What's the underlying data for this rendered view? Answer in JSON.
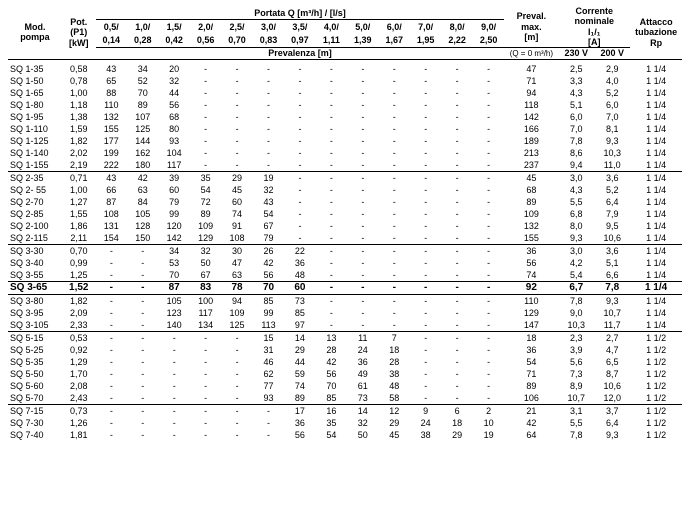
{
  "headers": {
    "model": "Mod.\npompa",
    "power": "Pot.\n(P1)\n[kW]",
    "flow_top": "Portata Q [m³/h] / [l/s]",
    "head": "Prevalenza [m]",
    "hmax": "Preval.\nmax.\n[m]",
    "hmax_note": "(Q = 0 m³/h)",
    "current": "Corrente\nnominale\nI₁/₁\n[A]",
    "conn": "Attacco\ntubazione\nRp",
    "volts": [
      "230 V",
      "200 V"
    ],
    "cols": [
      [
        "0,5/",
        "0,14"
      ],
      [
        "1,0/",
        "0,28"
      ],
      [
        "1,5/",
        "0,42"
      ],
      [
        "2,0/",
        "0,56"
      ],
      [
        "2,5/",
        "0,70"
      ],
      [
        "3,0/",
        "0,83"
      ],
      [
        "3,5/",
        "0,97"
      ],
      [
        "4,0/",
        "1,11"
      ],
      [
        "5,0/",
        "1,39"
      ],
      [
        "6,0/",
        "1,67"
      ],
      [
        "7,0/",
        "1,95"
      ],
      [
        "8,0/",
        "2,22"
      ],
      [
        "9,0/",
        "2,50"
      ]
    ]
  },
  "rows": [
    {
      "m": "SQ 1-35",
      "p": "0,58",
      "q": [
        "43",
        "34",
        "20",
        "-",
        "-",
        "-",
        "-",
        "-",
        "-",
        "-",
        "-",
        "-",
        "-"
      ],
      "h": "47",
      "a": [
        "2,5",
        "2,9"
      ],
      "c": "1 1/4"
    },
    {
      "m": "SQ 1-50",
      "p": "0,78",
      "q": [
        "65",
        "52",
        "32",
        "-",
        "-",
        "-",
        "-",
        "-",
        "-",
        "-",
        "-",
        "-",
        "-"
      ],
      "h": "71",
      "a": [
        "3,3",
        "4,0"
      ],
      "c": "1 1/4"
    },
    {
      "m": "SQ 1-65",
      "p": "1,00",
      "q": [
        "88",
        "70",
        "44",
        "-",
        "-",
        "-",
        "-",
        "-",
        "-",
        "-",
        "-",
        "-",
        "-"
      ],
      "h": "94",
      "a": [
        "4,3",
        "5,2"
      ],
      "c": "1 1/4"
    },
    {
      "m": "SQ 1-80",
      "p": "1,18",
      "q": [
        "110",
        "89",
        "56",
        "-",
        "-",
        "-",
        "-",
        "-",
        "-",
        "-",
        "-",
        "-",
        "-"
      ],
      "h": "118",
      "a": [
        "5,1",
        "6,0"
      ],
      "c": "1 1/4"
    },
    {
      "m": "SQ 1-95",
      "p": "1,38",
      "q": [
        "132",
        "107",
        "68",
        "-",
        "-",
        "-",
        "-",
        "-",
        "-",
        "-",
        "-",
        "-",
        "-"
      ],
      "h": "142",
      "a": [
        "6,0",
        "7,0"
      ],
      "c": "1 1/4"
    },
    {
      "m": "SQ 1-110",
      "p": "1,59",
      "q": [
        "155",
        "125",
        "80",
        "-",
        "-",
        "-",
        "-",
        "-",
        "-",
        "-",
        "-",
        "-",
        "-"
      ],
      "h": "166",
      "a": [
        "7,0",
        "8,1"
      ],
      "c": "1 1/4"
    },
    {
      "m": "SQ 1-125",
      "p": "1,82",
      "q": [
        "177",
        "144",
        "93",
        "-",
        "-",
        "-",
        "-",
        "-",
        "-",
        "-",
        "-",
        "-",
        "-"
      ],
      "h": "189",
      "a": [
        "7,8",
        "9,3"
      ],
      "c": "1 1/4"
    },
    {
      "m": "SQ 1-140",
      "p": "2,02",
      "q": [
        "199",
        "162",
        "104",
        "-",
        "-",
        "-",
        "-",
        "-",
        "-",
        "-",
        "-",
        "-",
        "-"
      ],
      "h": "213",
      "a": [
        "8,6",
        "10,3"
      ],
      "c": "1 1/4"
    },
    {
      "m": "SQ 1-155",
      "p": "2,19",
      "q": [
        "222",
        "180",
        "117",
        "-",
        "-",
        "-",
        "-",
        "-",
        "-",
        "-",
        "-",
        "-",
        "-"
      ],
      "h": "237",
      "a": [
        "9,4",
        "11,0"
      ],
      "c": "1 1/4",
      "sep": true
    },
    {
      "m": "SQ 2-35",
      "p": "0,71",
      "q": [
        "43",
        "42",
        "39",
        "35",
        "29",
        "19",
        "-",
        "-",
        "-",
        "-",
        "-",
        "-",
        "-"
      ],
      "h": "45",
      "a": [
        "3,0",
        "3,6"
      ],
      "c": "1 1/4"
    },
    {
      "m": "SQ 2- 55",
      "p": "1,00",
      "q": [
        "66",
        "63",
        "60",
        "54",
        "45",
        "32",
        "-",
        "-",
        "-",
        "-",
        "-",
        "-",
        "-"
      ],
      "h": "68",
      "a": [
        "4,3",
        "5,2"
      ],
      "c": "1 1/4"
    },
    {
      "m": "SQ 2-70",
      "p": "1,27",
      "q": [
        "87",
        "84",
        "79",
        "72",
        "60",
        "43",
        "-",
        "-",
        "-",
        "-",
        "-",
        "-",
        "-"
      ],
      "h": "89",
      "a": [
        "5,5",
        "6,4"
      ],
      "c": "1 1/4"
    },
    {
      "m": "SQ 2-85",
      "p": "1,55",
      "q": [
        "108",
        "105",
        "99",
        "89",
        "74",
        "54",
        "-",
        "-",
        "-",
        "-",
        "-",
        "-",
        "-"
      ],
      "h": "109",
      "a": [
        "6,8",
        "7,9"
      ],
      "c": "1 1/4"
    },
    {
      "m": "SQ 2-100",
      "p": "1,86",
      "q": [
        "131",
        "128",
        "120",
        "109",
        "91",
        "67",
        "-",
        "-",
        "-",
        "-",
        "-",
        "-",
        "-"
      ],
      "h": "132",
      "a": [
        "8,0",
        "9,5"
      ],
      "c": "1 1/4"
    },
    {
      "m": "SQ 2-115",
      "p": "2,11",
      "q": [
        "154",
        "150",
        "142",
        "129",
        "108",
        "79",
        "-",
        "-",
        "-",
        "-",
        "-",
        "-",
        "-"
      ],
      "h": "155",
      "a": [
        "9,3",
        "10,6"
      ],
      "c": "1 1/4",
      "sep": true
    },
    {
      "m": "SQ 3-30",
      "p": "0,70",
      "q": [
        "-",
        "-",
        "34",
        "32",
        "30",
        "26",
        "22",
        "-",
        "-",
        "-",
        "-",
        "-",
        "-"
      ],
      "h": "36",
      "a": [
        "3,0",
        "3,6"
      ],
      "c": "1 1/4"
    },
    {
      "m": "SQ 3-40",
      "p": "0,99",
      "q": [
        "-",
        "-",
        "53",
        "50",
        "47",
        "42",
        "36",
        "-",
        "-",
        "-",
        "-",
        "-",
        "-"
      ],
      "h": "56",
      "a": [
        "4,2",
        "5,1"
      ],
      "c": "1 1/4"
    },
    {
      "m": "SQ 3-55",
      "p": "1,25",
      "q": [
        "-",
        "-",
        "70",
        "67",
        "63",
        "56",
        "48",
        "-",
        "-",
        "-",
        "-",
        "-",
        "-"
      ],
      "h": "74",
      "a": [
        "5,4",
        "6,6"
      ],
      "c": "1 1/4",
      "sep": true
    },
    {
      "m": "SQ 3-65",
      "p": "1,52",
      "q": [
        "-",
        "-",
        "87",
        "83",
        "78",
        "70",
        "60",
        "-",
        "-",
        "-",
        "-",
        "-",
        "-"
      ],
      "h": "92",
      "a": [
        "6,7",
        "7,8"
      ],
      "c": "1 1/4",
      "bold": true,
      "sep": true
    },
    {
      "m": "SQ 3-80",
      "p": "1,82",
      "q": [
        "-",
        "-",
        "105",
        "100",
        "94",
        "85",
        "73",
        "-",
        "-",
        "-",
        "-",
        "-",
        "-"
      ],
      "h": "110",
      "a": [
        "7,8",
        "9,3"
      ],
      "c": "1 1/4"
    },
    {
      "m": "SQ 3-95",
      "p": "2,09",
      "q": [
        "-",
        "-",
        "123",
        "117",
        "109",
        "99",
        "85",
        "-",
        "-",
        "-",
        "-",
        "-",
        "-"
      ],
      "h": "129",
      "a": [
        "9,0",
        "10,7"
      ],
      "c": "1 1/4"
    },
    {
      "m": "SQ 3-105",
      "p": "2,33",
      "q": [
        "-",
        "-",
        "140",
        "134",
        "125",
        "113",
        "97",
        "-",
        "-",
        "-",
        "-",
        "-",
        "-"
      ],
      "h": "147",
      "a": [
        "10,3",
        "11,7"
      ],
      "c": "1 1/4",
      "sep": true
    },
    {
      "m": "SQ 5-15",
      "p": "0,53",
      "q": [
        "-",
        "-",
        "-",
        "-",
        "-",
        "15",
        "14",
        "13",
        "11",
        "7",
        "-",
        "-",
        "-"
      ],
      "h": "18",
      "a": [
        "2,3",
        "2,7"
      ],
      "c": "1 1/2"
    },
    {
      "m": "SQ 5-25",
      "p": "0,92",
      "q": [
        "-",
        "-",
        "-",
        "-",
        "-",
        "31",
        "29",
        "28",
        "24",
        "18",
        "-",
        "-",
        "-"
      ],
      "h": "36",
      "a": [
        "3,9",
        "4,7"
      ],
      "c": "1 1/2"
    },
    {
      "m": "SQ 5-35",
      "p": "1,29",
      "q": [
        "-",
        "-",
        "-",
        "-",
        "-",
        "46",
        "44",
        "42",
        "36",
        "28",
        "-",
        "-",
        "-"
      ],
      "h": "54",
      "a": [
        "5,6",
        "6,5"
      ],
      "c": "1 1/2"
    },
    {
      "m": "SQ 5-50",
      "p": "1,70",
      "q": [
        "-",
        "-",
        "-",
        "-",
        "-",
        "62",
        "59",
        "56",
        "49",
        "38",
        "-",
        "-",
        "-"
      ],
      "h": "71",
      "a": [
        "7,3",
        "8,7"
      ],
      "c": "1 1/2"
    },
    {
      "m": "SQ 5-60",
      "p": "2,08",
      "q": [
        "-",
        "-",
        "-",
        "-",
        "-",
        "77",
        "74",
        "70",
        "61",
        "48",
        "-",
        "-",
        "-"
      ],
      "h": "89",
      "a": [
        "8,9",
        "10,6"
      ],
      "c": "1 1/2"
    },
    {
      "m": "SQ 5-70",
      "p": "2,43",
      "q": [
        "-",
        "-",
        "-",
        "-",
        "-",
        "93",
        "89",
        "85",
        "73",
        "58",
        "-",
        "-",
        "-"
      ],
      "h": "106",
      "a": [
        "10,7",
        "12,0"
      ],
      "c": "1 1/2",
      "sep": true
    },
    {
      "m": "SQ 7-15",
      "p": "0,73",
      "q": [
        "-",
        "-",
        "-",
        "-",
        "-",
        "-",
        "17",
        "16",
        "14",
        "12",
        "9",
        "6",
        "2"
      ],
      "h": "21",
      "a": [
        "3,1",
        "3,7"
      ],
      "c": "1 1/2"
    },
    {
      "m": "SQ 7-30",
      "p": "1,26",
      "q": [
        "-",
        "-",
        "-",
        "-",
        "-",
        "-",
        "36",
        "35",
        "32",
        "29",
        "24",
        "18",
        "10"
      ],
      "h": "42",
      "a": [
        "5,5",
        "6,4"
      ],
      "c": "1 1/2"
    },
    {
      "m": "SQ 7-40",
      "p": "1,81",
      "q": [
        "-",
        "-",
        "-",
        "-",
        "-",
        "-",
        "56",
        "54",
        "50",
        "45",
        "38",
        "29",
        "19"
      ],
      "h": "64",
      "a": [
        "7,8",
        "9,3"
      ],
      "c": "1 1/2"
    }
  ]
}
